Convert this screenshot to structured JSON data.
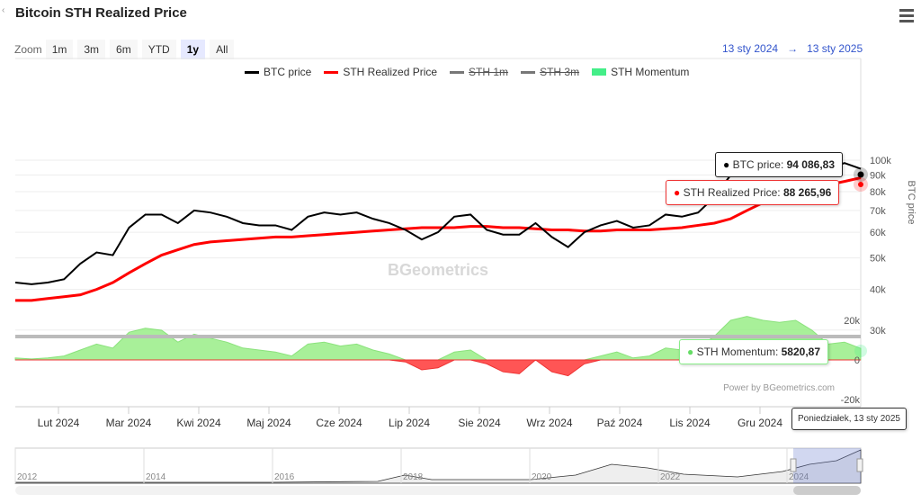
{
  "header": {
    "title": "Bitcoin STH Realized Price",
    "back_icon": "‹"
  },
  "zoom": {
    "label": "Zoom",
    "buttons": [
      "1m",
      "3m",
      "6m",
      "YTD",
      "1y",
      "All"
    ],
    "selected": "1y"
  },
  "range": {
    "from": "13 sty 2024",
    "arrow": "→",
    "to": "13 sty 2025"
  },
  "legend": [
    {
      "label": "BTC price",
      "color": "#000000"
    },
    {
      "label": "STH Realized Price",
      "color": "#ff0000"
    },
    {
      "label": "STH 1m",
      "color": "#777777",
      "hidden": true
    },
    {
      "label": "STH 3m",
      "color": "#777777",
      "hidden": true
    },
    {
      "label": "STH Momentum",
      "color": "#33dd77"
    }
  ],
  "tooltips": {
    "btc_label": "BTC price: ",
    "btc_value": "94 086,83",
    "sth_label": "STH Realized Price: ",
    "sth_value": "88 265,96",
    "mom_label": "STH Momentum: ",
    "mom_value": "5820,87",
    "date": "Poniedziałek, 13 sty 2025"
  },
  "watermark": "BGeometrics",
  "credit": "Power by BGeometrics.com",
  "chart_data": {
    "type": "line",
    "title": "Bitcoin STH Realized Price",
    "x_ticks": [
      "Lut 2024",
      "Mar 2024",
      "Kwi 2024",
      "Maj 2024",
      "Cze 2024",
      "Lip 2024",
      "Sie 2024",
      "Wrz 2024",
      "Paź 2024",
      "Lis 2024",
      "Gru 2024"
    ],
    "y_axis": {
      "label": "BTC price",
      "scale": "log",
      "ticks": [
        "100k",
        "90k",
        "80k",
        "70k",
        "60k",
        "50k",
        "40k",
        "30k"
      ],
      "tick_values": [
        100000,
        90000,
        80000,
        70000,
        60000,
        50000,
        40000,
        30000
      ]
    },
    "y2_axis": {
      "ticks": [
        "20k",
        "0",
        "-20k"
      ],
      "tick_values": [
        20000,
        0,
        -20000
      ]
    },
    "x_start": "2024-01-13",
    "x_end": "2025-01-13",
    "interval": "weekly",
    "series": [
      {
        "name": "BTC price",
        "values": [
          42,
          41.5,
          42,
          43,
          48,
          52,
          51,
          62,
          68,
          68,
          64,
          70,
          69,
          67,
          64,
          63,
          63,
          61,
          67,
          69,
          68,
          69,
          66,
          64,
          61,
          57,
          60,
          67,
          68,
          61,
          59,
          59,
          64,
          58,
          54,
          60,
          63,
          65,
          62,
          63,
          68,
          67,
          69,
          77,
          90,
          98,
          97,
          100,
          101,
          97,
          94,
          98,
          94.09
        ]
      },
      {
        "name": "STH Realized Price",
        "values": [
          37,
          37,
          37.5,
          38,
          38.5,
          40,
          42,
          45,
          48,
          51,
          53,
          55,
          56,
          56.5,
          57,
          57.5,
          58,
          58,
          58.5,
          59,
          59.5,
          60,
          60.5,
          61,
          61.5,
          62,
          62,
          62,
          62.5,
          62.5,
          62,
          62,
          61.5,
          61,
          61,
          60.5,
          60.5,
          61,
          61,
          61,
          61.5,
          62,
          63,
          64,
          66,
          70,
          74,
          78,
          80,
          82,
          84,
          86,
          88.27
        ]
      },
      {
        "name": "STH Momentum",
        "values": [
          1,
          0.5,
          1,
          2,
          5,
          8,
          6,
          14,
          16,
          15,
          9,
          13,
          11,
          9,
          6,
          5,
          4,
          2,
          8,
          9,
          7,
          8,
          5,
          3,
          -1,
          -5,
          -4,
          4,
          5,
          -2,
          -6,
          -7,
          0,
          -6,
          -8,
          -2,
          2,
          4,
          1,
          2,
          6,
          5,
          6,
          12,
          20,
          22,
          20,
          19,
          20,
          15,
          8,
          9,
          5.82
        ]
      }
    ]
  },
  "navigator": {
    "years": [
      "2012",
      "2014",
      "2016",
      "2018",
      "2020",
      "2022",
      "2024"
    ]
  }
}
